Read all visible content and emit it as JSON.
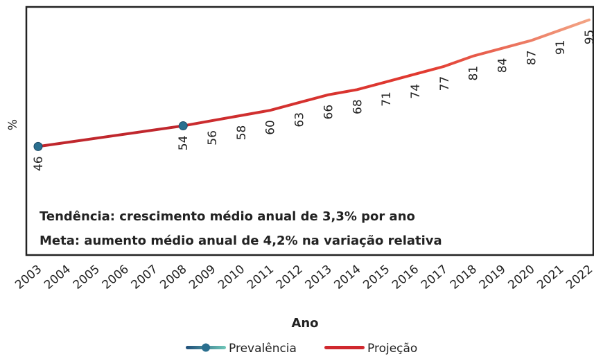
{
  "chart_data": {
    "type": "line",
    "y_label": "%",
    "x_label": "Ano",
    "annotations": [
      "Tendência: crescimento médio anual de 3,3% por ano",
      "Meta: aumento médio anual de 4,2% na variação relativa"
    ],
    "xlim": [
      2003,
      2022
    ],
    "xticks": [
      2003,
      2004,
      2005,
      2006,
      2007,
      2008,
      2009,
      2010,
      2011,
      2012,
      2013,
      2014,
      2015,
      2016,
      2017,
      2018,
      2019,
      2020,
      2021,
      2022
    ],
    "ylim": [
      4,
      100
    ],
    "series": [
      {
        "name": "Prevalência",
        "color": "#2a6f8f",
        "line_color": "#c0272d",
        "x": [
          2003,
          2008
        ],
        "values": [
          46,
          54
        ]
      },
      {
        "name": "Projeção",
        "color": "#d0282e",
        "x": [
          2008,
          2009,
          2010,
          2011,
          2012,
          2013,
          2014,
          2015,
          2016,
          2017,
          2018,
          2019,
          2020,
          2021,
          2022
        ],
        "values": [
          54,
          56,
          58,
          60,
          63,
          66,
          68,
          71,
          74,
          77,
          81,
          84,
          87,
          91,
          95
        ]
      }
    ]
  }
}
